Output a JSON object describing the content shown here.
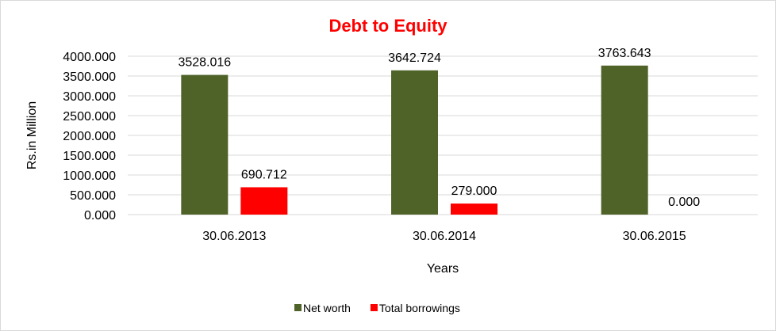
{
  "chart_data": {
    "type": "bar",
    "title": "Debt to Equity",
    "xlabel": "Years",
    "ylabel": "Rs.in Million",
    "categories": [
      "30.06.2013",
      "30.06.2014",
      "30.06.2015"
    ],
    "series": [
      {
        "name": "Net worth",
        "color": "#4F6228",
        "values": [
          3528.016,
          3642.724,
          3763.643
        ],
        "labels": [
          "3528.016",
          "3642.724",
          "3763.643"
        ]
      },
      {
        "name": "Total borrowings",
        "color": "#FF0000",
        "values": [
          690.712,
          279.0,
          0.0
        ],
        "labels": [
          "690.712",
          "279.000",
          "0.000"
        ]
      }
    ],
    "ylim": [
      0,
      4000
    ],
    "yticks": [
      "0.000",
      "500.000",
      "1000.000",
      "1500.000",
      "2000.000",
      "2500.000",
      "3000.000",
      "3500.000",
      "4000.000"
    ],
    "grid": true,
    "legend": "bottom",
    "title_color": "#FF0000"
  }
}
